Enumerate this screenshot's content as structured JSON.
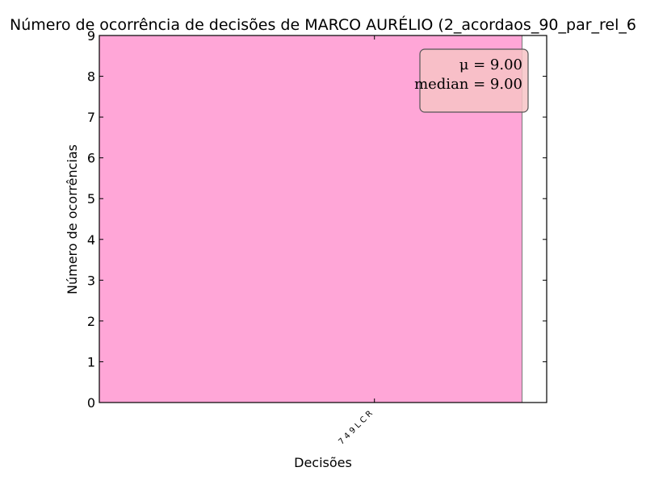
{
  "chart_data": {
    "type": "bar",
    "title": "Número de ocorrência de decisões de MARCO AURÉLIO (2_acordaos_90_par_rel_6",
    "xlabel": "Decisões",
    "ylabel": "Número de ocorrências",
    "categories": [
      "7 4 9 L C R"
    ],
    "values": [
      9
    ],
    "ylim": [
      0,
      9
    ],
    "yticks": [
      "0",
      "1",
      "2",
      "3",
      "4",
      "5",
      "6",
      "7",
      "8",
      "9"
    ],
    "bar_color": "#ffa6d7",
    "grid": false,
    "stats_box": {
      "mean_label": "μ = 9.00",
      "median_label": "median = 9.00",
      "background": "#f7c3c6",
      "placement": "top-right"
    }
  }
}
